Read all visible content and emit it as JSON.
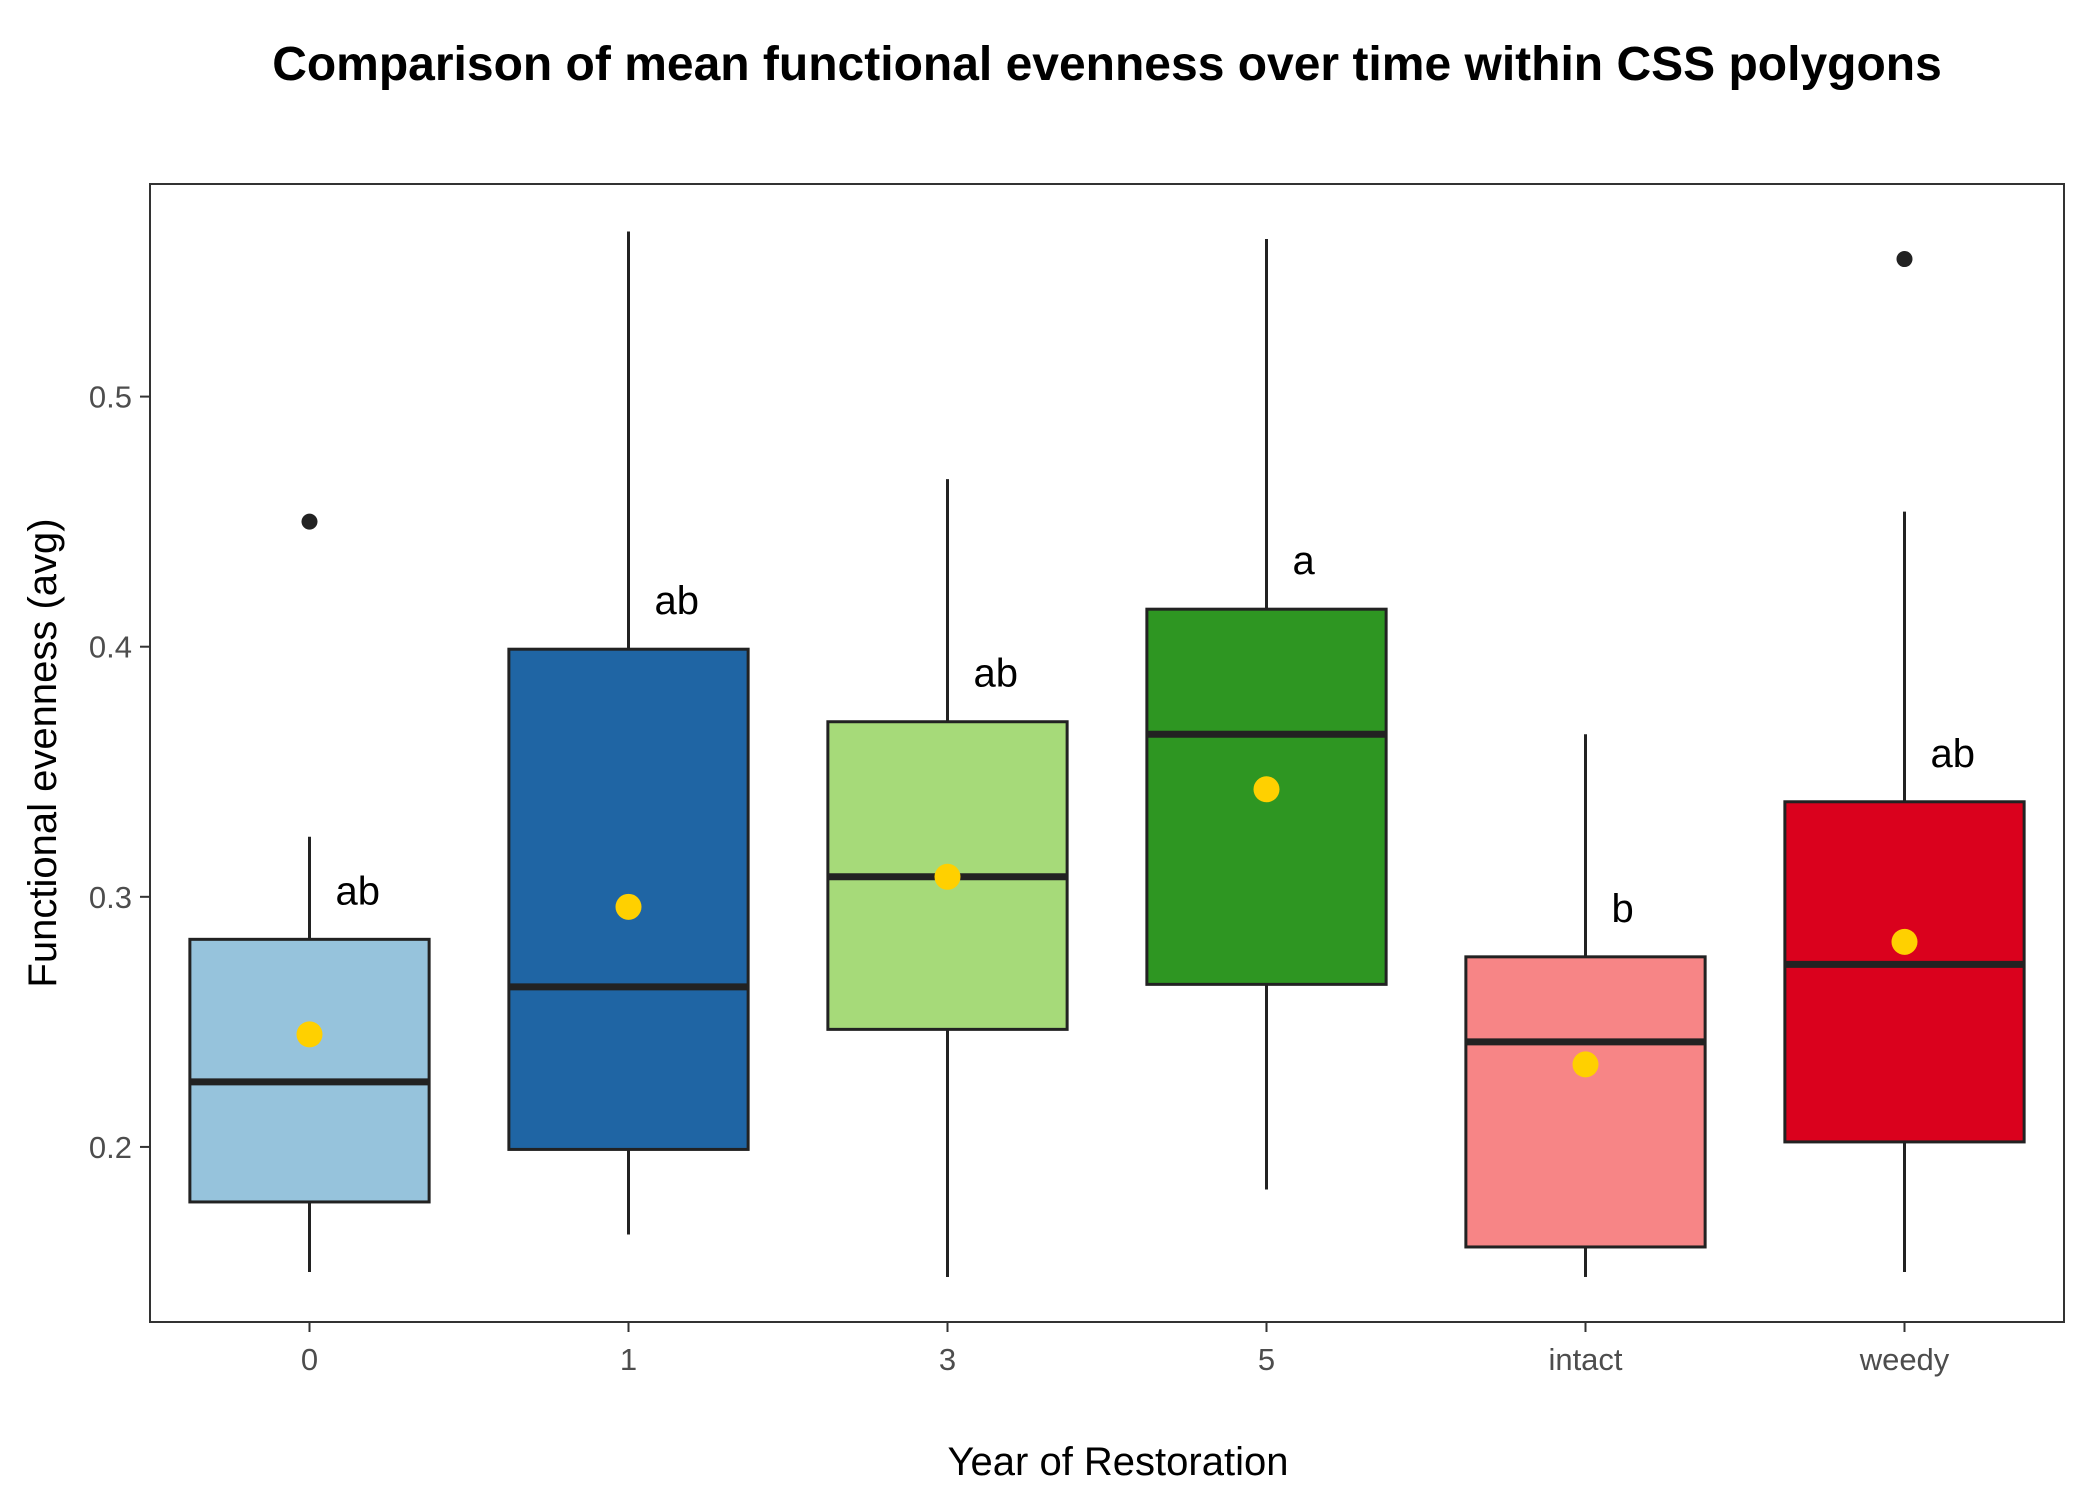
{
  "chart_data": {
    "type": "box",
    "title": "Comparison of mean functional evenness over time within CSS polygons",
    "xlabel": "Year of Restoration",
    "ylabel": "Functional evenness (avg)",
    "ylim": [
      0.13,
      0.585
    ],
    "yticks": [
      "0.2",
      "0.3",
      "0.4",
      "0.5"
    ],
    "grid": false,
    "legend": "none",
    "mean_marker_color": "#FFD000",
    "groups": [
      {
        "label": "0",
        "color": "#96C3DC",
        "whisker_low": 0.15,
        "q1": 0.178,
        "median": 0.226,
        "q3": 0.283,
        "whisker_high": 0.324,
        "mean": 0.245,
        "outliers": [
          0.45
        ],
        "letter": "ab"
      },
      {
        "label": "1",
        "color": "#1F65A4",
        "whisker_low": 0.165,
        "q1": 0.199,
        "median": 0.264,
        "q3": 0.399,
        "whisker_high": 0.566,
        "mean": 0.296,
        "outliers": [],
        "letter": "ab"
      },
      {
        "label": "3",
        "color": "#A6DA79",
        "whisker_low": 0.148,
        "q1": 0.247,
        "median": 0.308,
        "q3": 0.37,
        "whisker_high": 0.467,
        "mean": 0.308,
        "outliers": [],
        "letter": "ab"
      },
      {
        "label": "5",
        "color": "#2E9622",
        "whisker_low": 0.183,
        "q1": 0.265,
        "median": 0.365,
        "q3": 0.415,
        "whisker_high": 0.563,
        "mean": 0.343,
        "outliers": [],
        "letter": "a"
      },
      {
        "label": "intact",
        "color": "#F78586",
        "whisker_low": 0.148,
        "q1": 0.16,
        "median": 0.242,
        "q3": 0.276,
        "whisker_high": 0.365,
        "mean": 0.233,
        "outliers": [],
        "letter": "b"
      },
      {
        "label": "weedy",
        "color": "#DA011D",
        "whisker_low": 0.15,
        "q1": 0.202,
        "median": 0.273,
        "q3": 0.338,
        "whisker_high": 0.454,
        "mean": 0.282,
        "outliers": [
          0.555
        ],
        "letter": "ab"
      }
    ]
  }
}
